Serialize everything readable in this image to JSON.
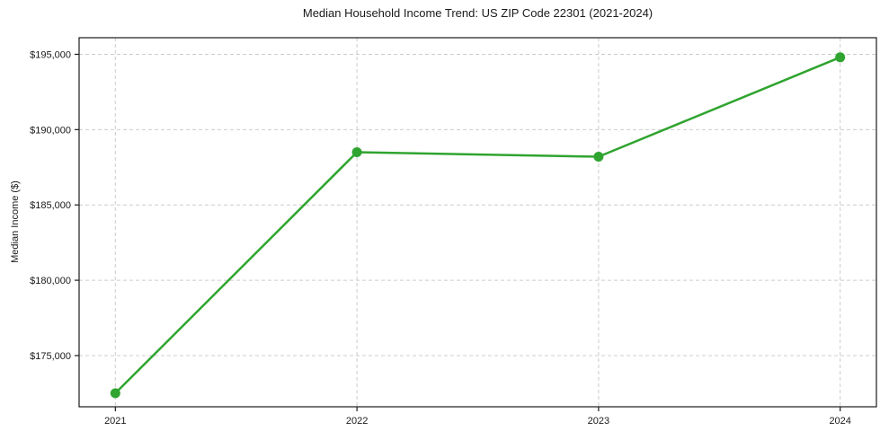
{
  "chart": {
    "title": "Median Household Income Trend: US ZIP Code 22301 (2021-2024)",
    "ylabel": "Median Income ($)"
  },
  "chart_data": {
    "type": "line",
    "title": "Median Household Income Trend: US ZIP Code 22301 (2021-2024)",
    "xlabel": "",
    "ylabel": "Median Income ($)",
    "categories": [
      "2021",
      "2022",
      "2023",
      "2024"
    ],
    "x": [
      2021,
      2022,
      2023,
      2024
    ],
    "series": [
      {
        "name": "Median Household Income",
        "values": [
          172500,
          188500,
          188200,
          194800
        ]
      }
    ],
    "xticks": [
      2021,
      2022,
      2023,
      2024
    ],
    "xtick_labels": [
      "2021",
      "2022",
      "2023",
      "2024"
    ],
    "yticks": [
      175000,
      180000,
      185000,
      190000,
      195000
    ],
    "ytick_labels": [
      "$175,000",
      "$180,000",
      "$185,000",
      "$190,000",
      "$195,000"
    ],
    "xlim": [
      2020.85,
      2024.15
    ],
    "ylim": [
      171600,
      196100
    ],
    "grid": true,
    "legend": false,
    "style": {
      "line_color": "#2fa42f",
      "marker_color": "#2fa42f",
      "line_width": 2.5,
      "marker_radius": 5.5,
      "grid_color": "#cccccc",
      "axis_color": "#1a1a1a",
      "text_color": "#1a1a1a",
      "background": "#ffffff"
    }
  }
}
